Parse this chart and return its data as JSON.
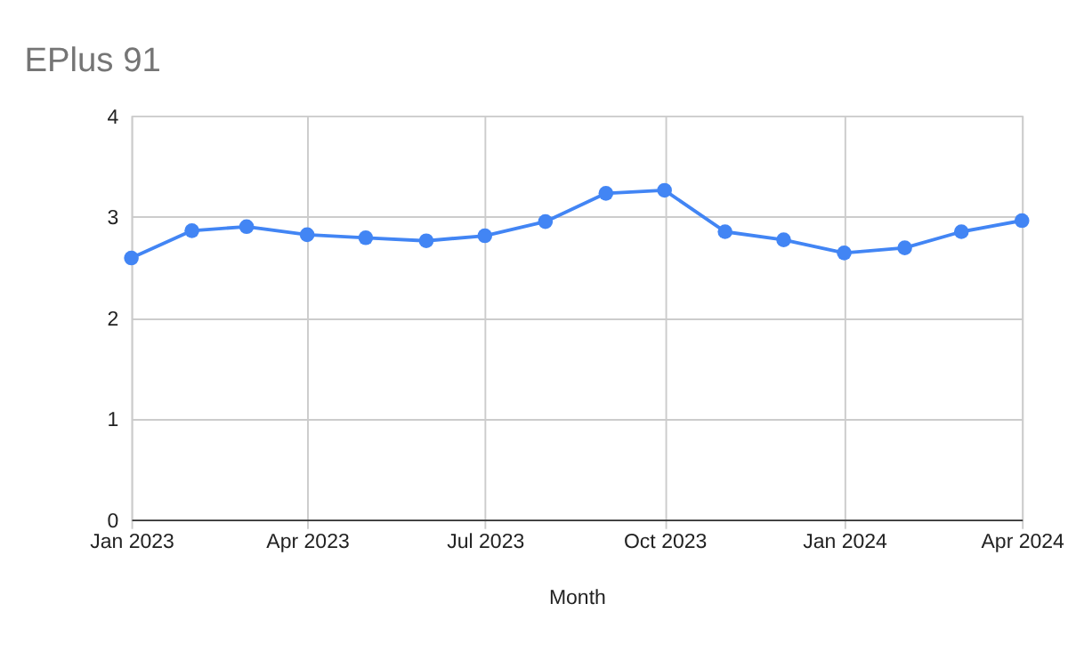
{
  "chart_data": {
    "type": "line",
    "title": "EPlus 91",
    "xlabel": "Month",
    "x": [
      "2023-01",
      "2023-02",
      "2023-03",
      "2023-04",
      "2023-05",
      "2023-06",
      "2023-07",
      "2023-08",
      "2023-09",
      "2023-10",
      "2023-11",
      "2023-12",
      "2024-01",
      "2024-02",
      "2024-03",
      "2024-04"
    ],
    "series": [
      {
        "color": "#4285f4",
        "values": [
          2.59,
          2.86,
          2.9,
          2.82,
          2.79,
          2.76,
          2.81,
          2.95,
          3.23,
          3.26,
          2.85,
          2.77,
          2.64,
          2.69,
          2.85,
          2.96
        ]
      }
    ],
    "xlim": [
      "2023-01",
      "2024-04"
    ],
    "xticks": [
      {
        "value": "2023-01",
        "label": "Jan 2023"
      },
      {
        "value": "2023-04",
        "label": "Apr 2023"
      },
      {
        "value": "2023-07",
        "label": "Jul 2023"
      },
      {
        "value": "2023-10",
        "label": "Oct 2023"
      },
      {
        "value": "2024-01",
        "label": "Jan 2024"
      },
      {
        "value": "2024-04",
        "label": "Apr 2024"
      }
    ],
    "ylim": [
      0,
      4
    ],
    "yticks": [
      0,
      1,
      2,
      3,
      4
    ],
    "grid": true,
    "marker": "circle",
    "line_style": "solid"
  }
}
